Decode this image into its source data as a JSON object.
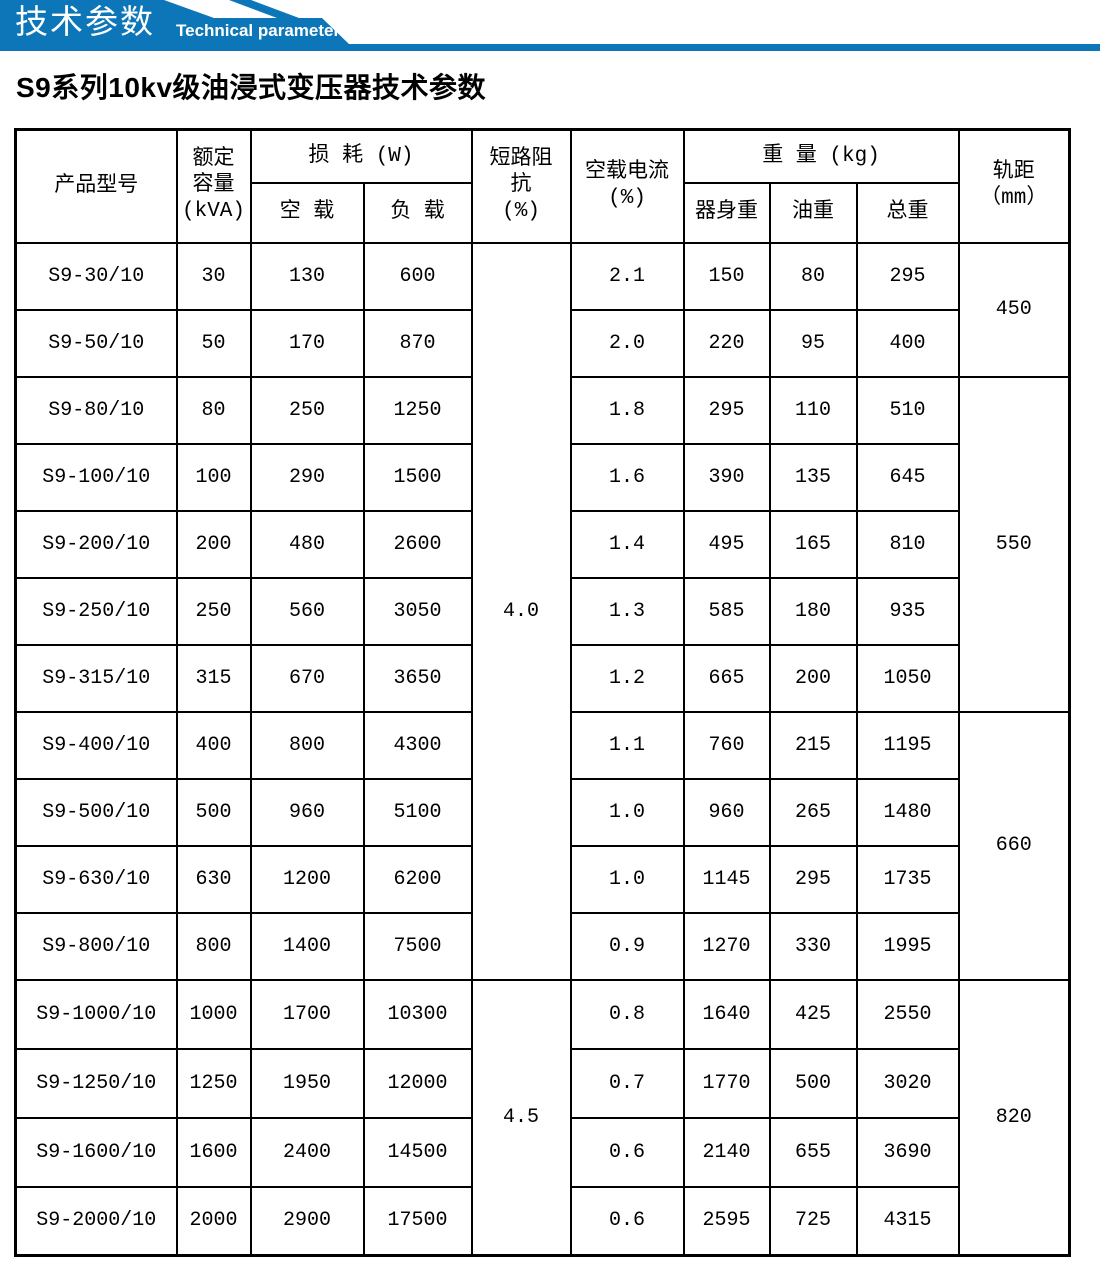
{
  "banner": {
    "title": "技术参数",
    "subtitle": "Technical parameter",
    "accent_color": "#0d76b8"
  },
  "page_title": "S9系列10kv级油浸式变压器技术参数",
  "table": {
    "header": {
      "product_model": "产品型号",
      "rated_capacity": [
        "额定",
        "容量",
        "(kVA)"
      ],
      "loss_group": "损 耗 (W)",
      "loss_no_load": "空 载",
      "loss_load": "负 载",
      "impedance": [
        "短路阻",
        "抗",
        "(%)"
      ],
      "no_load_current": [
        "空载电流",
        "(%)"
      ],
      "weight_group": "重 量 (kg)",
      "weight_body": "器身重",
      "weight_oil": "油重",
      "weight_total": "总重",
      "gauge": [
        "轨距",
        "（mm）"
      ]
    },
    "rows": [
      {
        "model": "S9-30/10",
        "capacity": "30",
        "no_load_loss": "130",
        "load_loss": "600",
        "current": "2.1",
        "body": "150",
        "oil": "80",
        "total": "295"
      },
      {
        "model": "S9-50/10",
        "capacity": "50",
        "no_load_loss": "170",
        "load_loss": "870",
        "current": "2.0",
        "body": "220",
        "oil": "95",
        "total": "400"
      },
      {
        "model": "S9-80/10",
        "capacity": "80",
        "no_load_loss": "250",
        "load_loss": "1250",
        "current": "1.8",
        "body": "295",
        "oil": "110",
        "total": "510"
      },
      {
        "model": "S9-100/10",
        "capacity": "100",
        "no_load_loss": "290",
        "load_loss": "1500",
        "current": "1.6",
        "body": "390",
        "oil": "135",
        "total": "645"
      },
      {
        "model": "S9-200/10",
        "capacity": "200",
        "no_load_loss": "480",
        "load_loss": "2600",
        "current": "1.4",
        "body": "495",
        "oil": "165",
        "total": "810"
      },
      {
        "model": "S9-250/10",
        "capacity": "250",
        "no_load_loss": "560",
        "load_loss": "3050",
        "current": "1.3",
        "body": "585",
        "oil": "180",
        "total": "935"
      },
      {
        "model": "S9-315/10",
        "capacity": "315",
        "no_load_loss": "670",
        "load_loss": "3650",
        "current": "1.2",
        "body": "665",
        "oil": "200",
        "total": "1050"
      },
      {
        "model": "S9-400/10",
        "capacity": "400",
        "no_load_loss": "800",
        "load_loss": "4300",
        "current": "1.1",
        "body": "760",
        "oil": "215",
        "total": "1195"
      },
      {
        "model": "S9-500/10",
        "capacity": "500",
        "no_load_loss": "960",
        "load_loss": "5100",
        "current": "1.0",
        "body": "960",
        "oil": "265",
        "total": "1480"
      },
      {
        "model": "S9-630/10",
        "capacity": "630",
        "no_load_loss": "1200",
        "load_loss": "6200",
        "current": "1.0",
        "body": "1145",
        "oil": "295",
        "total": "1735"
      },
      {
        "model": "S9-800/10",
        "capacity": "800",
        "no_load_loss": "1400",
        "load_loss": "7500",
        "current": "0.9",
        "body": "1270",
        "oil": "330",
        "total": "1995"
      },
      {
        "model": "S9-1000/10",
        "capacity": "1000",
        "no_load_loss": "1700",
        "load_loss": "10300",
        "current": "0.8",
        "body": "1640",
        "oil": "425",
        "total": "2550"
      },
      {
        "model": "S9-1250/10",
        "capacity": "1250",
        "no_load_loss": "1950",
        "load_loss": "12000",
        "current": "0.7",
        "body": "1770",
        "oil": "500",
        "total": "3020"
      },
      {
        "model": "S9-1600/10",
        "capacity": "1600",
        "no_load_loss": "2400",
        "load_loss": "14500",
        "current": "0.6",
        "body": "2140",
        "oil": "655",
        "total": "3690"
      },
      {
        "model": "S9-2000/10",
        "capacity": "2000",
        "no_load_loss": "2900",
        "load_loss": "17500",
        "current": "0.6",
        "body": "2595",
        "oil": "725",
        "total": "4315"
      }
    ],
    "impedance_spans": [
      {
        "value": "4.0",
        "row_start": 0,
        "row_count": 11
      },
      {
        "value": "4.5",
        "row_start": 11,
        "row_count": 4
      }
    ],
    "gauge_spans": [
      {
        "value": "450",
        "row_start": 0,
        "row_count": 2
      },
      {
        "value": "550",
        "row_start": 2,
        "row_count": 5
      },
      {
        "value": "660",
        "row_start": 7,
        "row_count": 4
      },
      {
        "value": "820",
        "row_start": 11,
        "row_count": 4
      }
    ]
  }
}
